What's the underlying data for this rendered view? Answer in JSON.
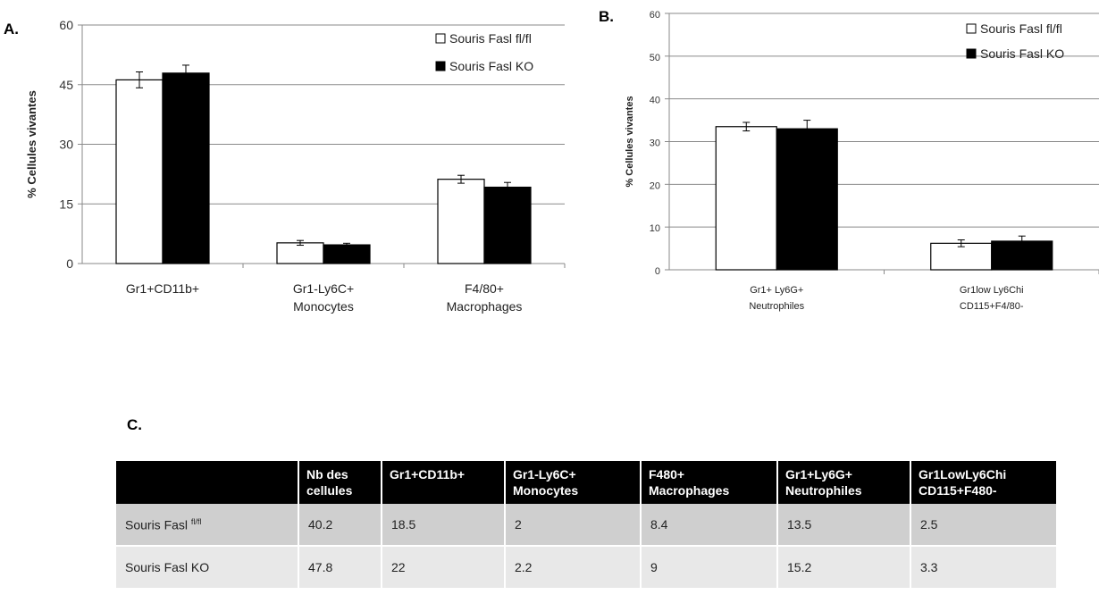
{
  "panels": {
    "a": "A.",
    "b": "B.",
    "c": "C."
  },
  "colors": {
    "fl": "#ffffff",
    "ko": "#000000"
  },
  "chart_data": [
    {
      "type": "bar",
      "ylabel": "% Cellules vivantes",
      "ylim": [
        0,
        60
      ],
      "yticks": [
        0,
        15,
        30,
        45,
        60
      ],
      "grid": true,
      "legend_position": "top-right",
      "categories": [
        [
          "Gr1+CD11b+"
        ],
        [
          "Gr1-Ly6C+",
          "Monocytes"
        ],
        [
          "F4/80+",
          "Macrophages"
        ]
      ],
      "series": [
        {
          "name": "Souris Fasl fl/fl",
          "values": [
            46.2,
            5.2,
            21.2
          ],
          "errors": [
            2.0,
            0.6,
            1.0
          ]
        },
        {
          "name": "Souris Fasl KO",
          "values": [
            47.9,
            4.7,
            19.2
          ],
          "errors": [
            2.0,
            0.4,
            1.2
          ]
        }
      ]
    },
    {
      "type": "bar",
      "ylabel": "% Cellules vivantes",
      "ylim": [
        0,
        60
      ],
      "yticks": [
        0,
        10,
        20,
        30,
        40,
        50,
        60
      ],
      "grid": true,
      "legend_position": "top-right",
      "categories": [
        [
          "Gr1+ Ly6G+",
          "Neutrophiles"
        ],
        [
          "Gr1low Ly6Chi",
          "CD115+F4/80-"
        ]
      ],
      "series": [
        {
          "name": "Souris Fasl fl/fl",
          "values": [
            33.5,
            6.2
          ],
          "errors": [
            1.0,
            0.8
          ]
        },
        {
          "name": "Souris Fasl KO",
          "values": [
            33.0,
            6.7
          ],
          "errors": [
            2.0,
            1.2
          ]
        }
      ]
    }
  ],
  "table": {
    "headers": [
      [
        ""
      ],
      [
        "Nb des",
        "cellules"
      ],
      [
        "Gr1+CD11b+"
      ],
      [
        "Gr1-Ly6C+",
        "Monocytes"
      ],
      [
        "F480+",
        "Macrophages"
      ],
      [
        "Gr1+Ly6G+",
        "Neutrophiles"
      ],
      [
        "Gr1LowLy6Chi",
        "CD115+F480-"
      ]
    ],
    "rows": [
      {
        "label": "Souris Fasl ",
        "sup": "fl/fl",
        "values": [
          "40.2",
          "18.5",
          "2",
          "8.4",
          "13.5",
          "2.5"
        ]
      },
      {
        "label": "Souris Fasl KO",
        "sup": "",
        "values": [
          "47.8",
          "22",
          "2.2",
          "9",
          "15.2",
          "3.3"
        ]
      }
    ]
  }
}
